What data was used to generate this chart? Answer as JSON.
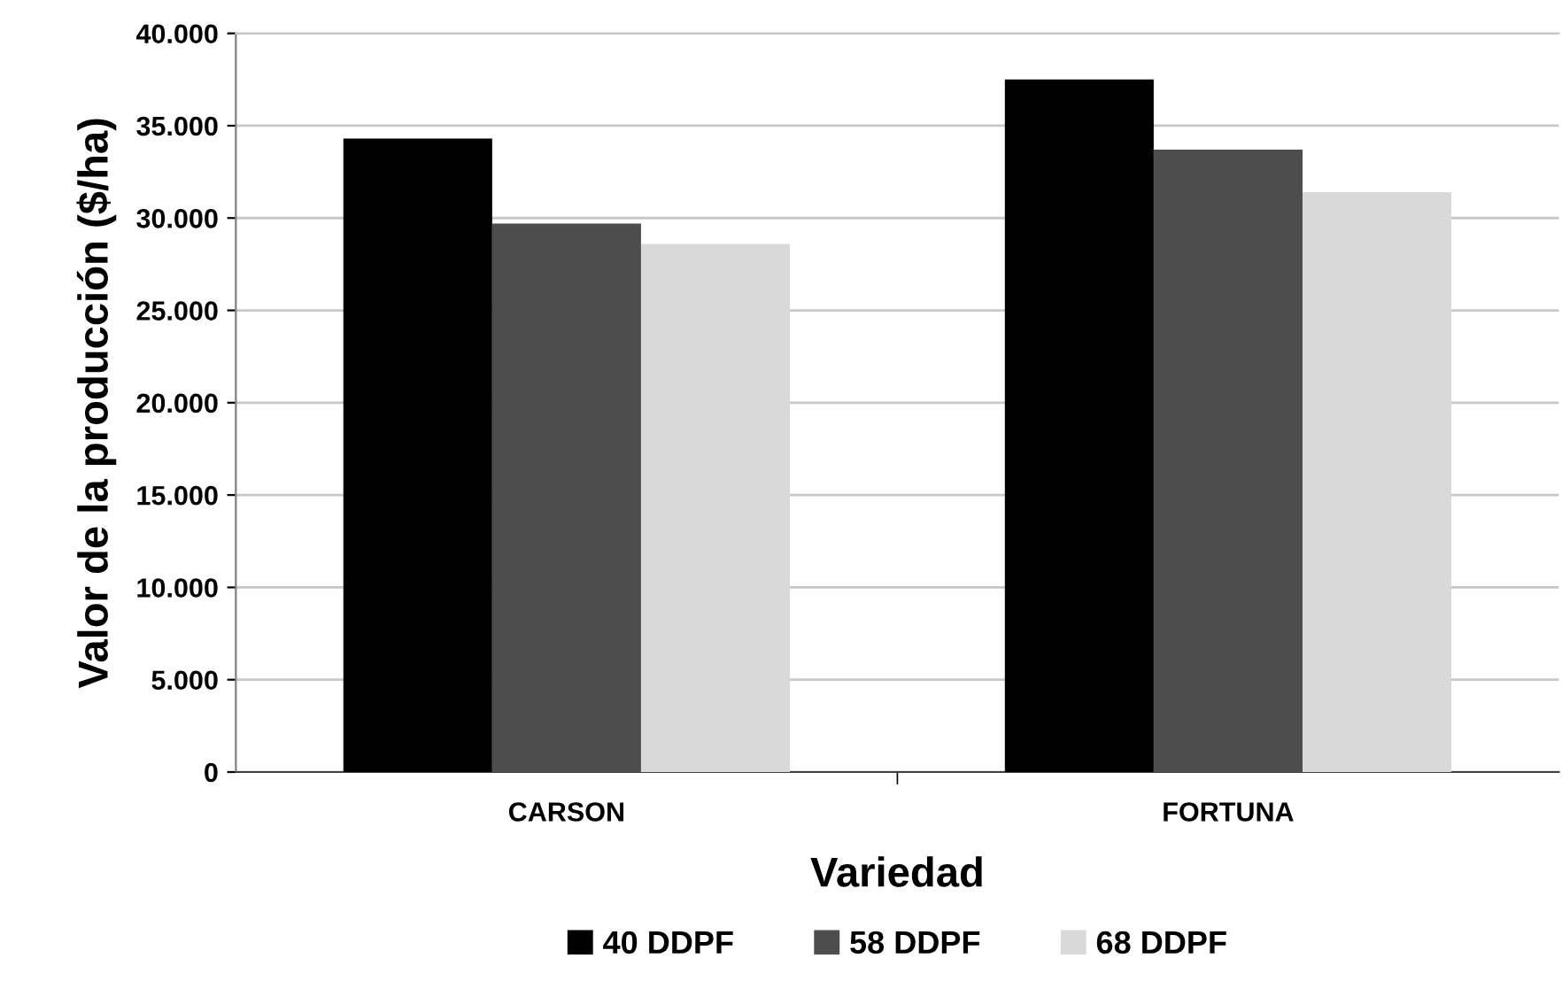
{
  "chart_data": {
    "type": "bar",
    "xlabel": "Variedad",
    "ylabel": "Valor de la producción ($/ha)",
    "categories": [
      "CARSON",
      "FORTUNA"
    ],
    "series": [
      {
        "name": "40 DDPF",
        "color": "#000000",
        "values": [
          34300,
          37500
        ]
      },
      {
        "name": "58 DDPF",
        "color": "#4d4d4d",
        "values": [
          29700,
          33700
        ]
      },
      {
        "name": "68 DDPF",
        "color": "#d9d9d9",
        "values": [
          28600,
          31400
        ]
      }
    ],
    "ylim": [
      0,
      40000
    ],
    "yticks": [
      {
        "value": 0,
        "label": "0"
      },
      {
        "value": 5000,
        "label": "5.000"
      },
      {
        "value": 10000,
        "label": "10.000"
      },
      {
        "value": 15000,
        "label": "15.000"
      },
      {
        "value": 20000,
        "label": "20.000"
      },
      {
        "value": 25000,
        "label": "25.000"
      },
      {
        "value": 30000,
        "label": "30.000"
      },
      {
        "value": 35000,
        "label": "35.000"
      },
      {
        "value": 40000,
        "label": "40.000"
      }
    ],
    "grid": "y",
    "legend": "bottom"
  }
}
